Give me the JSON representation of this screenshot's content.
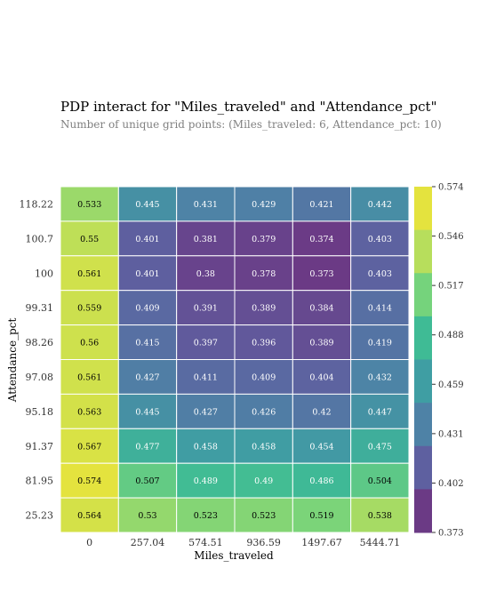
{
  "chart_data": {
    "type": "heatmap",
    "title": "PDP interact for \"Miles_traveled\" and \"Attendance_pct\"",
    "subtitle": "Number of unique grid points: (Miles_traveled: 6, Attendance_pct: 10)",
    "xlabel": "Miles_traveled",
    "ylabel": "Attendance_pct",
    "x_categories": [
      "0",
      "257.04",
      "574.51",
      "936.59",
      "1497.67",
      "5444.71"
    ],
    "y_categories": [
      "118.22",
      "100.7",
      "100",
      "99.31",
      "98.26",
      "97.08",
      "95.18",
      "91.37",
      "81.95",
      "25.23"
    ],
    "values": [
      [
        0.533,
        0.445,
        0.431,
        0.429,
        0.421,
        0.442
      ],
      [
        0.55,
        0.401,
        0.381,
        0.379,
        0.374,
        0.403
      ],
      [
        0.561,
        0.401,
        0.38,
        0.378,
        0.373,
        0.403
      ],
      [
        0.559,
        0.409,
        0.391,
        0.389,
        0.384,
        0.414
      ],
      [
        0.56,
        0.415,
        0.397,
        0.396,
        0.389,
        0.419
      ],
      [
        0.561,
        0.427,
        0.411,
        0.409,
        0.404,
        0.432
      ],
      [
        0.563,
        0.445,
        0.427,
        0.426,
        0.42,
        0.447
      ],
      [
        0.567,
        0.477,
        0.458,
        0.458,
        0.454,
        0.475
      ],
      [
        0.574,
        0.507,
        0.489,
        0.49,
        0.486,
        0.504
      ],
      [
        0.564,
        0.53,
        0.523,
        0.523,
        0.519,
        0.538
      ]
    ],
    "colorbar_ticks": [
      "0.574",
      "0.546",
      "0.517",
      "0.488",
      "0.459",
      "0.431",
      "0.402",
      "0.373"
    ],
    "colorbar_range": [
      0.373,
      0.574
    ],
    "colorbar_colors": [
      "#6b3a85",
      "#5e60a0",
      "#4e82a6",
      "#3f9ea3",
      "#3fbb95",
      "#75d37c",
      "#b7de5c",
      "#e4e33e"
    ],
    "colormap": "viridis",
    "colorbar_placement": "right"
  }
}
